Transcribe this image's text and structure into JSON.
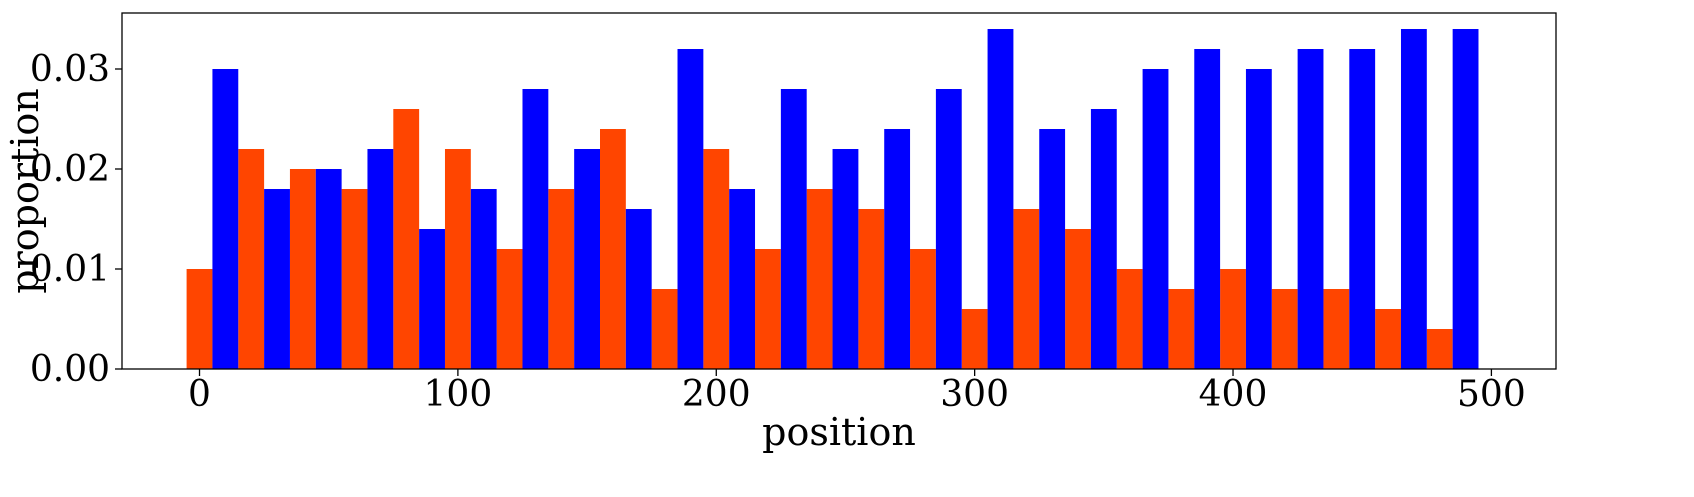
{
  "chart_data": {
    "type": "bar",
    "xlabel": "position",
    "ylabel": "proportion",
    "xlim": [
      -30,
      525
    ],
    "ylim": [
      0,
      0.0356
    ],
    "bar_width": 10,
    "x_ticks": [
      {
        "value": 0,
        "label": "0"
      },
      {
        "value": 100,
        "label": "100"
      },
      {
        "value": 200,
        "label": "200"
      },
      {
        "value": 300,
        "label": "300"
      },
      {
        "value": 400,
        "label": "400"
      },
      {
        "value": 500,
        "label": "500"
      }
    ],
    "y_ticks": [
      {
        "value": 0,
        "label": "0.00"
      },
      {
        "value": 0.01,
        "label": "0.01"
      },
      {
        "value": 0.02,
        "label": "0.02"
      },
      {
        "value": 0.03,
        "label": "0.03"
      }
    ],
    "grid": false,
    "series": [
      {
        "color": "#ff4500",
        "x": [
          0,
          20,
          40,
          60,
          80,
          100,
          120,
          140,
          160,
          180,
          200,
          220,
          240,
          260,
          280,
          300,
          320,
          340,
          360,
          380,
          400,
          420,
          440,
          460,
          480
        ],
        "values": [
          0.01,
          0.022,
          0.02,
          0.018,
          0.026,
          0.022,
          0.012,
          0.018,
          0.024,
          0.008,
          0.022,
          0.012,
          0.018,
          0.016,
          0.012,
          0.006,
          0.016,
          0.014,
          0.01,
          0.008,
          0.01,
          0.008,
          0.008,
          0.006,
          0.004
        ]
      },
      {
        "color": "#0000ff",
        "x": [
          10,
          30,
          50,
          70,
          90,
          110,
          130,
          150,
          170,
          190,
          210,
          230,
          250,
          270,
          290,
          310,
          330,
          350,
          370,
          390,
          410,
          430,
          450,
          470,
          490
        ],
        "values": [
          0.03,
          0.018,
          0.02,
          0.022,
          0.014,
          0.018,
          0.028,
          0.022,
          0.016,
          0.032,
          0.018,
          0.028,
          0.022,
          0.024,
          0.028,
          0.034,
          0.024,
          0.026,
          0.03,
          0.032,
          0.03,
          0.032,
          0.032,
          0.034,
          0.034
        ]
      }
    ]
  }
}
